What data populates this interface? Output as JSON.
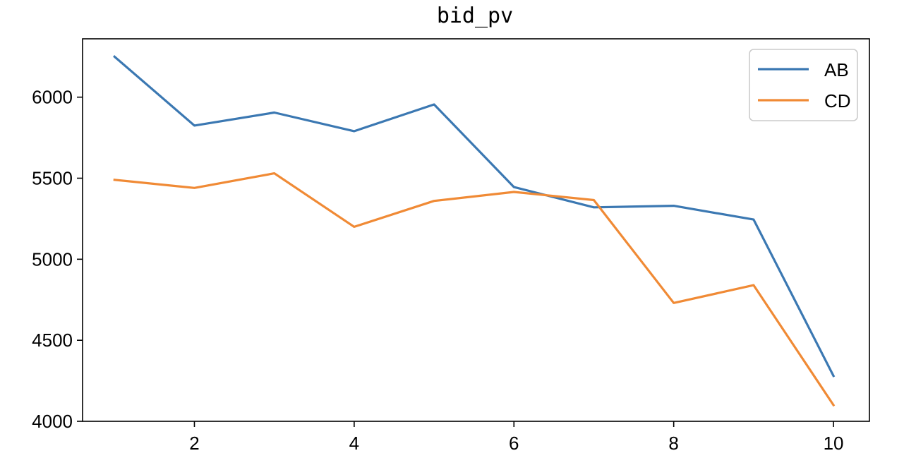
{
  "chart_data": {
    "type": "line",
    "title": "bid_pv",
    "xlabel": "",
    "ylabel": "",
    "x": [
      1,
      2,
      3,
      4,
      5,
      6,
      7,
      8,
      9,
      10
    ],
    "xlim": [
      0.6,
      10.45
    ],
    "ylim": [
      4000,
      6360
    ],
    "xticks": [
      2,
      4,
      6,
      8,
      10
    ],
    "yticks": [
      4000,
      4500,
      5000,
      5500,
      6000
    ],
    "series": [
      {
        "name": "AB",
        "color": "#3b78b2",
        "values": [
          6250,
          5825,
          5905,
          5790,
          5955,
          5445,
          5320,
          5330,
          5245,
          4280
        ]
      },
      {
        "name": "CD",
        "color": "#f08a35",
        "values": [
          5490,
          5440,
          5530,
          5200,
          5360,
          5415,
          5365,
          4730,
          4840,
          4100
        ]
      }
    ],
    "legend": {
      "placement": "top-right"
    },
    "grid": false
  }
}
